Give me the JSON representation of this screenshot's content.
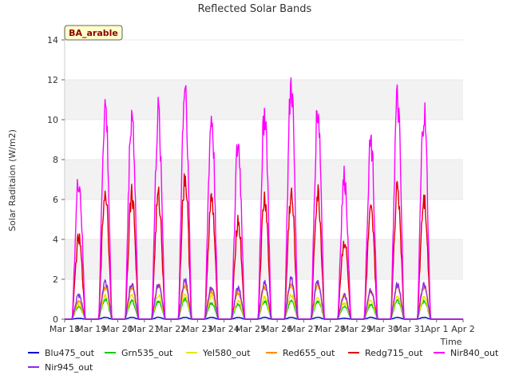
{
  "chart_data": {
    "type": "line",
    "title": "Reflected Solar Bands",
    "xlabel": "Time",
    "ylabel": "Solar Raditaion (W/m2)",
    "site_label": "BA_arable",
    "ylim": [
      0,
      14
    ],
    "yticks": [
      0,
      2,
      4,
      6,
      8,
      10,
      12,
      14
    ],
    "xlim": [
      0,
      15
    ],
    "xticks": [
      "Mar 18",
      "Mar 19",
      "Mar 20",
      "Mar 21",
      "Mar 22",
      "Mar 23",
      "Mar 24",
      "Mar 25",
      "Mar 26",
      "Mar 27",
      "Mar 28",
      "Mar 29",
      "Mar 30",
      "Mar 31",
      "Apr 1",
      "Apr 2"
    ],
    "grid": "horizontal bands",
    "legend_position": "bottom",
    "days": [
      "Mar 18",
      "Mar 19",
      "Mar 20",
      "Mar 21",
      "Mar 22",
      "Mar 23",
      "Mar 24",
      "Mar 25",
      "Mar 26",
      "Mar 27",
      "Mar 28",
      "Mar 29",
      "Mar 30",
      "Mar 31",
      "Apr 1"
    ],
    "series": [
      {
        "name": "Blu475_out",
        "color": "#0000cc",
        "daily_peak": [
          0.05,
          0.1,
          0.1,
          0.1,
          0.1,
          0.1,
          0.1,
          0.1,
          0.1,
          0.1,
          0.05,
          0.1,
          0.1,
          0.1,
          0.0
        ]
      },
      {
        "name": "Grn535_out",
        "color": "#00cc00",
        "daily_peak": [
          0.7,
          1.1,
          1.0,
          1.0,
          1.1,
          0.9,
          0.8,
          1.0,
          1.0,
          1.0,
          0.7,
          0.8,
          1.0,
          1.0,
          0.0
        ]
      },
      {
        "name": "Yel580_out",
        "color": "#e6e600",
        "daily_peak": [
          0.8,
          1.3,
          1.3,
          1.3,
          1.3,
          1.3,
          1.0,
          1.2,
          1.3,
          1.2,
          0.9,
          1.0,
          1.2,
          1.2,
          0.0
        ]
      },
      {
        "name": "Red655_out",
        "color": "#ff8c00",
        "daily_peak": [
          1.0,
          1.8,
          1.8,
          1.9,
          1.9,
          1.6,
          1.5,
          1.8,
          1.9,
          1.9,
          1.3,
          1.5,
          1.8,
          1.8,
          0.0
        ]
      },
      {
        "name": "Redg715_out",
        "color": "#dd0000",
        "daily_peak": [
          4.4,
          7.0,
          6.9,
          6.7,
          7.8,
          6.5,
          5.4,
          6.6,
          6.8,
          6.8,
          4.3,
          5.8,
          7.1,
          6.7,
          0.0
        ]
      },
      {
        "name": "Nir840_out",
        "color": "#ff00ff",
        "daily_peak": [
          7.6,
          11.6,
          11.4,
          11.2,
          12.9,
          11.0,
          9.5,
          11.4,
          12.8,
          11.5,
          7.7,
          9.9,
          11.9,
          11.3,
          0.0
        ]
      },
      {
        "name": "Nir945_out",
        "color": "#8a2be2",
        "daily_peak": [
          1.3,
          2.0,
          1.9,
          1.9,
          2.1,
          1.8,
          1.7,
          2.0,
          2.2,
          2.1,
          1.3,
          1.6,
          1.9,
          1.9,
          0.0
        ]
      }
    ]
  }
}
